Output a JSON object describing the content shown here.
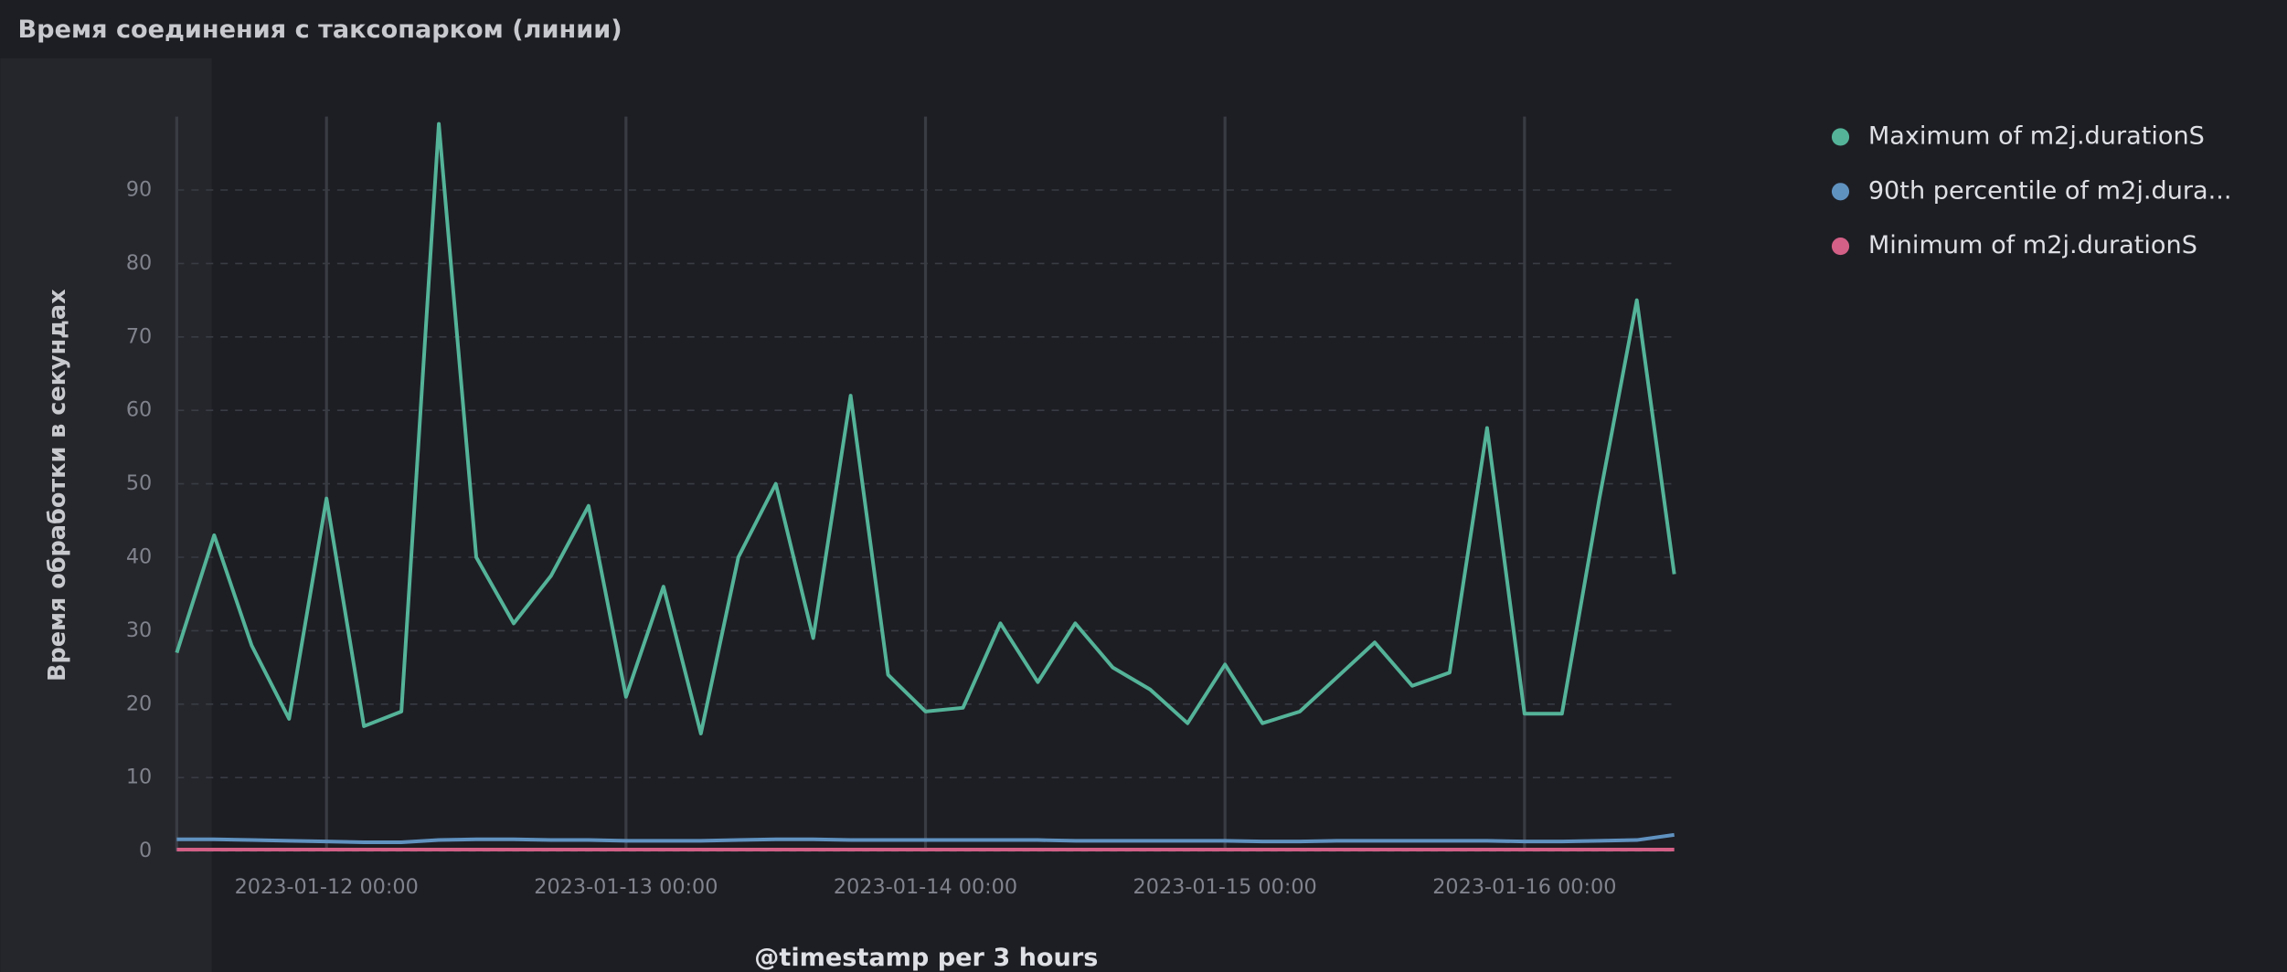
{
  "chart_data": {
    "type": "line",
    "title": "Время соединения с таксопарком (линии)",
    "y_label": "Время обработки в секундах",
    "x_label": "@timestamp per 3 hours",
    "x": [
      "2023-01-11 12:00",
      "2023-01-11 15:00",
      "2023-01-11 18:00",
      "2023-01-11 21:00",
      "2023-01-12 00:00",
      "2023-01-12 03:00",
      "2023-01-12 06:00",
      "2023-01-12 09:00",
      "2023-01-12 12:00",
      "2023-01-12 15:00",
      "2023-01-12 18:00",
      "2023-01-12 21:00",
      "2023-01-13 00:00",
      "2023-01-13 03:00",
      "2023-01-13 06:00",
      "2023-01-13 09:00",
      "2023-01-13 12:00",
      "2023-01-13 15:00",
      "2023-01-13 18:00",
      "2023-01-13 21:00",
      "2023-01-14 00:00",
      "2023-01-14 03:00",
      "2023-01-14 06:00",
      "2023-01-14 09:00",
      "2023-01-14 12:00",
      "2023-01-14 15:00",
      "2023-01-14 18:00",
      "2023-01-14 21:00",
      "2023-01-15 00:00",
      "2023-01-15 03:00",
      "2023-01-15 06:00",
      "2023-01-15 09:00",
      "2023-01-15 12:00",
      "2023-01-15 15:00",
      "2023-01-15 18:00",
      "2023-01-15 21:00",
      "2023-01-16 00:00",
      "2023-01-16 03:00",
      "2023-01-16 06:00",
      "2023-01-16 09:00",
      "2023-01-16 12:00"
    ],
    "series": [
      {
        "name": "Maximum of m2j.durationS",
        "color": "#54b399",
        "values": [
          27,
          43,
          28,
          18,
          48,
          17,
          19,
          99,
          40,
          31,
          37.5,
          47,
          21,
          36,
          16,
          40,
          50,
          29,
          62,
          24,
          19,
          19.5,
          31,
          23,
          31,
          25,
          22,
          17.4,
          25.4,
          17.4,
          19,
          23.7,
          28.4,
          22.5,
          24.3,
          57.6,
          18.7,
          18.7,
          48,
          75,
          37.7
        ]
      },
      {
        "name": "90th percentile of m2j.dura...",
        "color": "#6092c0",
        "values": [
          1.6,
          1.6,
          1.5,
          1.4,
          1.3,
          1.2,
          1.2,
          1.5,
          1.6,
          1.6,
          1.5,
          1.5,
          1.4,
          1.4,
          1.4,
          1.5,
          1.6,
          1.6,
          1.5,
          1.5,
          1.5,
          1.5,
          1.5,
          1.5,
          1.4,
          1.4,
          1.4,
          1.4,
          1.4,
          1.3,
          1.3,
          1.4,
          1.4,
          1.4,
          1.4,
          1.4,
          1.3,
          1.3,
          1.4,
          1.5,
          2.2
        ]
      },
      {
        "name": "Minimum of m2j.durationS",
        "color": "#d36086",
        "values": [
          0.2,
          0.2,
          0.2,
          0.2,
          0.2,
          0.2,
          0.2,
          0.2,
          0.2,
          0.2,
          0.2,
          0.2,
          0.2,
          0.2,
          0.2,
          0.2,
          0.2,
          0.2,
          0.2,
          0.2,
          0.2,
          0.2,
          0.2,
          0.2,
          0.2,
          0.2,
          0.2,
          0.2,
          0.2,
          0.2,
          0.2,
          0.2,
          0.2,
          0.2,
          0.2,
          0.2,
          0.2,
          0.2,
          0.2,
          0.2,
          0.2
        ]
      }
    ],
    "xlim": [
      "2023-01-11 12:00",
      "2023-01-16 12:00"
    ],
    "xticks": [
      "2023-01-12 00:00",
      "2023-01-13 00:00",
      "2023-01-14 00:00",
      "2023-01-15 00:00",
      "2023-01-16 00:00"
    ],
    "ylim": [
      0,
      100
    ],
    "yticks": [
      0,
      10,
      20,
      30,
      40,
      50,
      60,
      70,
      80,
      90
    ],
    "grid": true,
    "legend": "right"
  }
}
